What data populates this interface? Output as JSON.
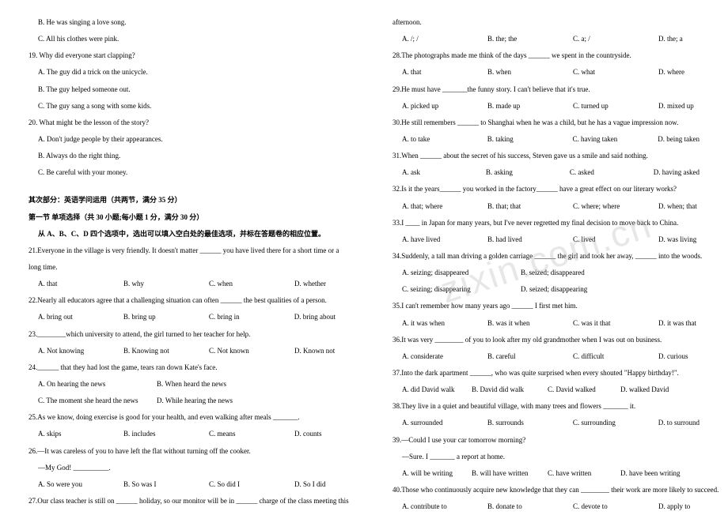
{
  "watermark": "zixin.com.cn",
  "left": {
    "lines": [
      {
        "cls": "indent1",
        "text": "B. He was singing a love song."
      },
      {
        "cls": "indent1",
        "text": "C. All his clothes were pink."
      },
      {
        "cls": "",
        "text": "19. Why did everyone start clapping?"
      },
      {
        "cls": "indent1",
        "text": "A. The guy did a trick on the unicycle."
      },
      {
        "cls": "indent1",
        "text": "B. The guy helped someone out."
      },
      {
        "cls": "indent1",
        "text": "C. The guy sang a song with some kids."
      },
      {
        "cls": "",
        "text": "20. What might be the lesson of the story?"
      },
      {
        "cls": "indent1",
        "text": "A. Don't judge people by their appearances."
      },
      {
        "cls": "indent1",
        "text": "B. Always do the right thing."
      },
      {
        "cls": "indent1",
        "text": "C. Be careful with your money."
      }
    ],
    "section_a": "其次部分：英语学问运用（共两节，满分 35 分）",
    "section_b": "第一节  单项选择（共 30 小题;每小题 1 分，满分 30 分）",
    "section_c": "从 A、B、C、D 四个选项中，选出可以填入空白处的最佳选项，并标在答题卷的相应位置。",
    "q21a": "21.Everyone in the village is very friendly. It doesn't matter ______ you have lived there for a   short time or a",
    "q21b": "long time.",
    "q21opts": {
      "a": "A. that",
      "b": "B. why",
      "c": "C. when",
      "d": "D. whether"
    },
    "q22": "22.Nearly all educators agree that a challenging situation can often ______ the best qualities of a person.",
    "q22opts": {
      "a": "A. bring out",
      "b": "B. bring up",
      "c": "C. bring in",
      "d": "D. bring about"
    },
    "q23": "23.________which university to attend, the girl turned to her teacher for help.",
    "q23opts": {
      "a": "A. Not knowing",
      "b": "B. Knowing not",
      "c": "C. Not known",
      "d": "D. Known not"
    },
    "q24": "24.______ that they had lost the game, tears ran down Kate's face.",
    "q24opts": {
      "a": "A. On hearing the news",
      "b": "B. When heard the news",
      "c": "C. The moment she heard the news",
      "d": "D. While hearing the news"
    },
    "q25": "25.As we know, doing exercise is good for your health, and even walking after meals _______.",
    "q25opts": {
      "a": "A. skips",
      "b": "B. includes",
      "c": "C. means",
      "d": "D. counts"
    },
    "q26a": "26.—It was careless of you to have left the flat without turning off the cooker.",
    "q26b": "—My God! __________.",
    "q26opts": {
      "a": "A. So were you",
      "b": "B. So was I",
      "c": "C. So did I",
      "d": "D. So I did"
    },
    "q27": "27.Our class teacher is still on ______ holiday, so our monitor will be in ______ charge of the class meeting this"
  },
  "right": {
    "q27b": "afternoon.",
    "q27opts": {
      "a": "A. /; /",
      "b": "B. the; the",
      "c": "C. a; /",
      "d": "D. the; a"
    },
    "q28": "28.The photographs made me think of the days ______ we spent in the countryside.",
    "q28opts": {
      "a": "A. that",
      "b": "B. when",
      "c": "C. what",
      "d": "D. where"
    },
    "q29": "29.He must have _______the funny story. I can't believe that it's true.",
    "q29opts": {
      "a": "A. picked up",
      "b": "B. made up",
      "c": "C. turned up",
      "d": "D. mixed up"
    },
    "q30": "30.He still remembers ______ to Shanghai when he was a child, but he has a vague impression now.",
    "q30opts": {
      "a": "A. to take",
      "b": "B. taking",
      "c": "C. having taken",
      "d": "D. being taken"
    },
    "q31": "31.When ______ about the secret of his success, Steven gave us a smile and said nothing.",
    "q31opts": {
      "a": "A. ask",
      "b": "B. asking",
      "c": "C. asked",
      "d": "D. having asked"
    },
    "q32": "32.Is it the years______ you worked in the factory______ have a great effect on our literary works?",
    "q32opts": {
      "a": "A. that; where",
      "b": "B. that; that",
      "c": "C. where; where",
      "d": "D. when; that"
    },
    "q33": "33.I ____ in Japan for many years, but I've never regretted my final decision to move back to China.",
    "q33opts": {
      "a": "A. have lived",
      "b": "B. had lived",
      "c": "C. lived",
      "d": "D. was living"
    },
    "q34": "34.Suddenly, a tall man driving a golden carriage ______ the girl and took her away, ______ into the woods.",
    "q34opts": {
      "a": "A. seizing; disappeared",
      "b": "B. seized; disappeared",
      "c": "C. seizing; disappearing",
      "d": "D. seized; disappearing"
    },
    "q35": "35.I can't remember how many years ago ______ I first met him.",
    "q35opts": {
      "a": "A. it was when",
      "b": "B. was it when",
      "c": "C. was it that",
      "d": "D. it was that"
    },
    "q36": "36.It was very ________ of you to look after my old grandmother when I was out on business.",
    "q36opts": {
      "a": "A. considerate",
      "b": "B. careful",
      "c": "C. difficult",
      "d": "D. curious"
    },
    "q37": "37.Into the dark apartment ______, who was quite surprised when every shouted \"Happy birthday!\".",
    "q37opts": {
      "a": "A. did David walk",
      "b": "B. David did walk",
      "c": "C. David walked",
      "d": "D. walked David"
    },
    "q38": "38.They live in a quiet and beautiful village, with many trees and flowers _______ it.",
    "q38opts": {
      "a": "A. surrounded",
      "b": "B. surrounds",
      "c": "C. surrounding",
      "d": "D. to surround"
    },
    "q39a": "39.—Could I use your car tomorrow morning?",
    "q39b": "—Sure. I _______ a report at home.",
    "q39opts": {
      "a": "A. will be writing",
      "b": "B. will have written",
      "c": "C. have written",
      "d": "D. have been writing"
    },
    "q40": "40.Those who continuously acquire new knowledge that they can ________ their work are more likely to succeed.",
    "q40opts": {
      "a": "A. contribute to",
      "b": "B. donate to",
      "c": "C. devote to",
      "d": "D. apply to"
    }
  },
  "colw": {
    "a": 108,
    "b": 108,
    "c": 108,
    "d": 80
  },
  "colm": {
    "a": 150,
    "b": 150
  },
  "coln": {
    "a": 88,
    "b": 96,
    "c": 92,
    "d": 92
  }
}
